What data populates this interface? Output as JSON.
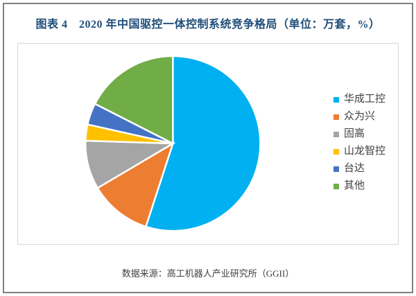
{
  "page": {
    "title": "图表 4　2020 年中国驱控一体控制系统竞争格局（单位：万套，%）",
    "source": "数据来源：高工机器人产业研究所（GGII）"
  },
  "chart_data": {
    "type": "pie",
    "title": "2020 年中国驱控一体控制系统竞争格局",
    "unit": "万套，%",
    "legend_position": "right",
    "start_angle_deg": 0,
    "direction": "clockwise",
    "slices": [
      {
        "label": "华成工控",
        "value": 55,
        "color": "#00B0F0"
      },
      {
        "label": "众为兴",
        "value": 11.5,
        "color": "#ED7D31"
      },
      {
        "label": "固高",
        "value": 9,
        "color": "#A5A5A5"
      },
      {
        "label": "山龙智控",
        "value": 3,
        "color": "#FFC000"
      },
      {
        "label": "台达",
        "value": 4,
        "color": "#4472C4"
      },
      {
        "label": "其他",
        "value": 17.5,
        "color": "#70AD47"
      }
    ]
  },
  "colors": {
    "title": "#1F4E79",
    "outer_border": "#808080",
    "plot_border": "#D9D9D9",
    "slice_gap": "#FFFFFF",
    "legend_text": "#404040",
    "footer_text": "#3F3F3F"
  }
}
